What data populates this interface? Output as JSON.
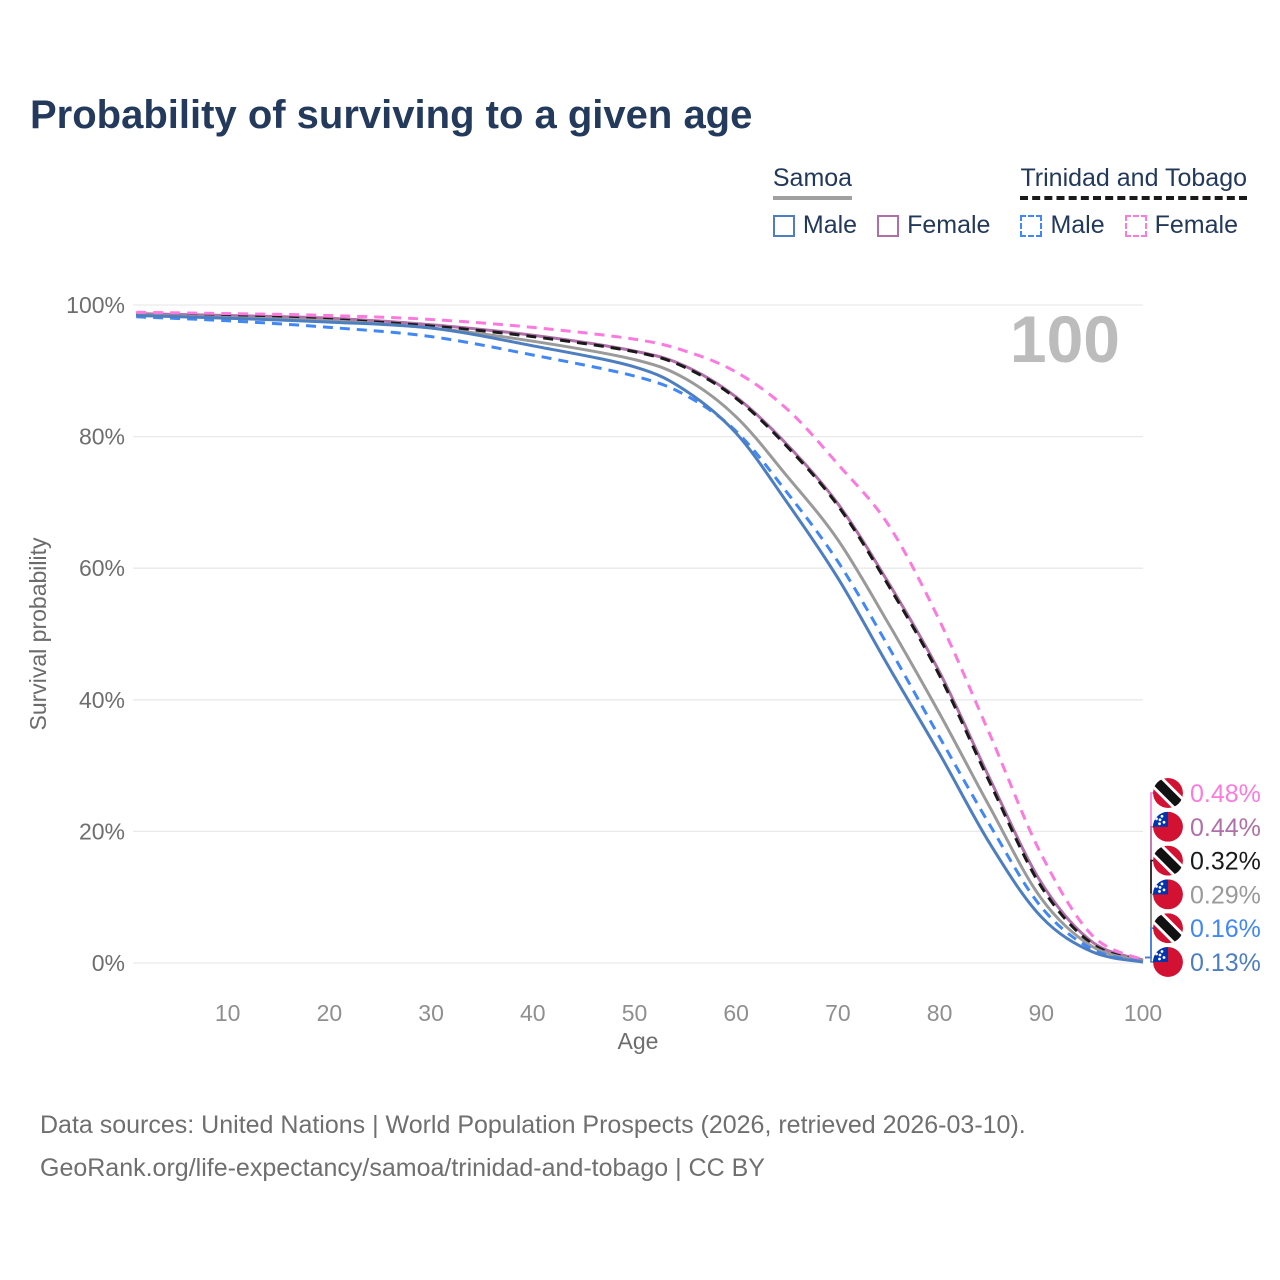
{
  "title": "Probability of surviving to a given age",
  "legend": {
    "groups": [
      {
        "label": "Samoa",
        "line_style": "solid",
        "line_color": "#a0a0a0",
        "items": [
          {
            "label": "Male",
            "color": "#4d7ec0",
            "dashed": false
          },
          {
            "label": "Female",
            "color": "#b06fa8",
            "dashed": false
          }
        ]
      },
      {
        "label": "Trinidad and Tobago",
        "line_style": "dashed",
        "line_color": "#1a1a1a",
        "items": [
          {
            "label": "Male",
            "color": "#4187f5",
            "dashed": true
          },
          {
            "label": "Female",
            "color": "#fc7ae0",
            "dashed": true
          }
        ]
      }
    ]
  },
  "chart_data": {
    "type": "line",
    "title": "Probability of surviving to a given age",
    "xlabel": "Age",
    "ylabel": "Survival probability",
    "xlim": [
      0,
      100
    ],
    "ylim": [
      0,
      100
    ],
    "x_ticks": [
      10,
      20,
      30,
      40,
      50,
      60,
      70,
      80,
      90,
      100
    ],
    "y_ticks": [
      {
        "value": 0,
        "label": "0%"
      },
      {
        "value": 20,
        "label": "20%"
      },
      {
        "value": 40,
        "label": "40%"
      },
      {
        "value": 60,
        "label": "60%"
      },
      {
        "value": 80,
        "label": "80%"
      },
      {
        "value": 100,
        "label": "100%"
      }
    ],
    "grid": "horizontal",
    "hover_age_watermark": "100",
    "x": [
      1,
      10,
      20,
      30,
      40,
      50,
      55,
      60,
      65,
      70,
      75,
      80,
      85,
      90,
      95,
      100
    ],
    "series": [
      {
        "id": "samoa-female",
        "name": "Samoa Female",
        "country": "Samoa",
        "color": "#b06fa8",
        "dash": "solid",
        "flag": "samoa",
        "end_label": "0.44%",
        "values": [
          98.7,
          98.4,
          98.0,
          97.0,
          95.4,
          93.0,
          90.7,
          86.0,
          78.8,
          69.8,
          57.7,
          44.2,
          27.8,
          12.2,
          3.2,
          0.44
        ]
      },
      {
        "id": "trinidad-and-tobago-total",
        "name": "Trinidad and Tobago",
        "country": "Trinidad and Tobago",
        "color": "#1a1a1a",
        "dash": "dashed",
        "flag": "trinidad-and-tobago",
        "end_label": "0.32%",
        "values": [
          98.6,
          98.3,
          97.8,
          96.8,
          95.2,
          92.9,
          90.5,
          85.8,
          78.5,
          69.5,
          57.3,
          43.7,
          27.2,
          11.6,
          2.9,
          0.32
        ]
      },
      {
        "id": "samoa-total",
        "name": "Samoa",
        "country": "Samoa",
        "color": "#9a9a9a",
        "dash": "solid",
        "flag": "samoa",
        "end_label": "0.29%",
        "values": [
          98.5,
          98.1,
          97.6,
          96.5,
          94.5,
          91.7,
          88.8,
          83.0,
          74.0,
          64.3,
          51.5,
          37.9,
          23.5,
          9.8,
          2.5,
          0.29
        ]
      },
      {
        "id": "trinidad-and-tobago-female",
        "name": "Trinidad and Tobago Female",
        "country": "Trinidad and Tobago",
        "color": "#fc7ae0",
        "dash": "dashed",
        "flag": "trinidad-and-tobago",
        "end_label": "0.48%",
        "values": [
          98.9,
          98.7,
          98.4,
          97.8,
          96.6,
          94.8,
          93.0,
          89.8,
          84.2,
          75.8,
          66.5,
          52.0,
          34.5,
          16.5,
          4.2,
          0.48
        ]
      },
      {
        "id": "trinidad-and-tobago-male",
        "name": "Trinidad and Tobago Male",
        "country": "Trinidad and Tobago",
        "color": "#4187f5",
        "dash": "dashed",
        "flag": "trinidad-and-tobago",
        "end_label": "0.16%",
        "values": [
          98.2,
          97.6,
          96.6,
          95.2,
          92.4,
          89.2,
          86.3,
          80.8,
          71.5,
          61.0,
          48.0,
          34.3,
          20.8,
          8.5,
          2.1,
          0.16
        ]
      },
      {
        "id": "samoa-male",
        "name": "Samoa Male",
        "country": "Samoa",
        "color": "#4d7ec0",
        "dash": "solid",
        "flag": "samoa",
        "end_label": "0.13%",
        "values": [
          98.4,
          98.0,
          97.4,
          96.5,
          93.8,
          90.6,
          87.0,
          80.5,
          70.0,
          58.5,
          45.0,
          31.8,
          18.0,
          7.0,
          1.7,
          0.13
        ]
      }
    ]
  },
  "footer": {
    "line1": "Data sources: United Nations | World Population Prospects (2026, retrieved 2026-03-10).",
    "line2": "GeoRank.org/life-expectancy/samoa/trinidad-and-tobago | CC BY"
  }
}
